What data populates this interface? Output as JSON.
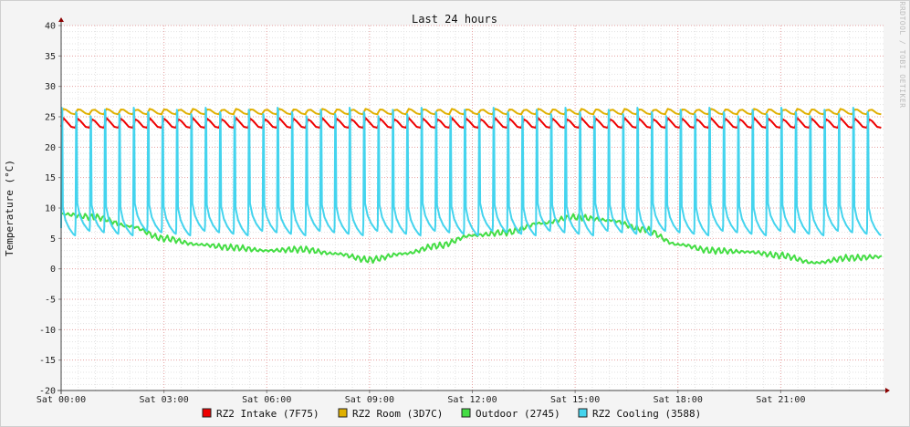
{
  "chart_data": {
    "type": "line",
    "title": "Last 24 hours",
    "ylabel": "Temperature (°C)",
    "xlabel": "",
    "watermark": "RRDTOOL / TOBI OETIKER",
    "ylim": [
      -20,
      40
    ],
    "y_ticks": [
      40,
      35,
      30,
      25,
      20,
      15,
      10,
      5,
      0,
      -5,
      -10,
      -15,
      -20
    ],
    "x_tick_labels": [
      "Sat 00:00",
      "Sat 03:00",
      "Sat 06:00",
      "Sat 09:00",
      "Sat 12:00",
      "Sat 15:00",
      "Sat 18:00",
      "Sat 21:00"
    ],
    "x_range_hours": [
      0,
      24
    ],
    "grid": true,
    "legend_position": "bottom",
    "series": [
      {
        "name": "RZ2 Intake (7F75)",
        "color": "#ee0000",
        "pattern": "sawtooth",
        "cycle_hours": 0.42,
        "low": 23.2,
        "high": 24.8
      },
      {
        "name": "RZ2 Room (3D7C)",
        "color": "#e0b000",
        "pattern": "sawtooth",
        "cycle_hours": 0.42,
        "low": 25.4,
        "high": 26.3
      },
      {
        "name": "Outdoor (2745)",
        "color": "#44dd44",
        "pattern": "smooth",
        "points_hours": [
          0,
          1,
          2,
          3,
          4,
          5,
          6,
          7,
          8,
          9,
          10,
          11,
          12,
          13,
          14,
          15,
          16,
          17,
          18,
          19,
          20,
          21,
          22,
          23,
          24
        ],
        "points_values": [
          9,
          8.5,
          7,
          5,
          4,
          3.5,
          3,
          3.2,
          2.5,
          1.5,
          2.5,
          3.8,
          5.5,
          6,
          7.5,
          8.5,
          8,
          6.5,
          4,
          3,
          2.8,
          2.2,
          1,
          1.8,
          2
        ]
      },
      {
        "name": "RZ2 Cooling (3588)",
        "color": "#44d4ee",
        "pattern": "pulse",
        "cycle_hours": 0.42,
        "low": 5.5,
        "high": 26.5
      }
    ]
  }
}
